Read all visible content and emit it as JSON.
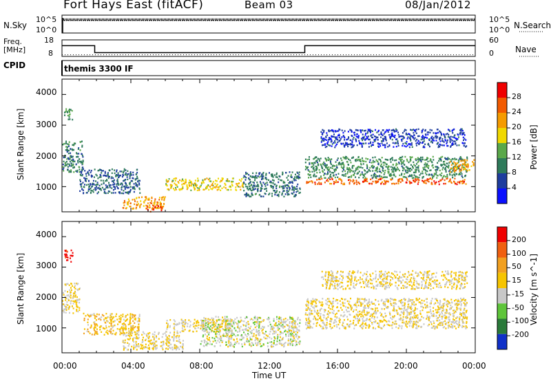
{
  "header": {
    "radar": "Fort Hays East (fitACF)",
    "beam": "Beam 03",
    "date": "08/Jan/2012"
  },
  "noise_panel": {
    "left_label": "N.Sky",
    "left_ticks": [
      "10^5",
      "10^0"
    ],
    "right_ticks": [
      "10^5",
      "10^0"
    ],
    "right_label": "N.Search"
  },
  "freq_panel": {
    "left_label_1": "Freq.",
    "left_label_2": "[MHz]",
    "left_ticks": [
      "18",
      "8"
    ],
    "right_ticks": [
      "60",
      "0"
    ],
    "right_label": "Nave"
  },
  "cpid_panel": {
    "label": "CPID",
    "text": "themis 3300 IF"
  },
  "power_panel": {
    "ylabel": "Slant Range [km]",
    "yticks": [
      "4000",
      "3000",
      "2000",
      "1000"
    ],
    "colorbar_label": "Power [dB]",
    "colorbar_ticks": [
      "28",
      "24",
      "20",
      "16",
      "12",
      "8",
      "4"
    ],
    "colors": [
      "#0a10ff",
      "#1e3d9e",
      "#2e7a5a",
      "#5aa84a",
      "#f0d800",
      "#f59b00",
      "#f25a00",
      "#f00000"
    ]
  },
  "velocity_panel": {
    "ylabel": "Slant Range [km]",
    "yticks": [
      "4000",
      "3000",
      "2000",
      "1000"
    ],
    "colorbar_label": "Velocity [m s^-1]",
    "colorbar_ticks": [
      "200",
      "100",
      "50",
      "15",
      "-15",
      "-50",
      "-100",
      "-200"
    ],
    "colors": [
      "#1030c8",
      "#2a7a3a",
      "#5ec53a",
      "#c8c8c8",
      "#f6c400",
      "#f2a020",
      "#f06010",
      "#f00000"
    ]
  },
  "x_axis": {
    "ticks": [
      "00:00",
      "04:00",
      "08:00",
      "12:00",
      "16:00",
      "20:00",
      "00:00"
    ],
    "label": "Time UT"
  },
  "chart_data": [
    {
      "type": "line",
      "title": "Fort Hays East (fitACF)",
      "series": [
        {
          "name": "N.Sky",
          "x_hours": [
            0,
            24
          ],
          "log10_values": [
            3.8,
            3.8
          ]
        }
      ],
      "ylim_log10": [
        0,
        5
      ]
    },
    {
      "type": "line",
      "series": [
        {
          "name": "Freq. [MHz]",
          "x_hours": [
            0,
            1.9,
            1.9,
            14.1,
            14.1,
            24
          ],
          "values": [
            14.5,
            14.5,
            10.3,
            10.3,
            14.5,
            14.5
          ]
        },
        {
          "name": "Nave",
          "x_hours": [
            0,
            24
          ],
          "values": [
            9,
            9
          ]
        }
      ],
      "ylim": [
        8,
        18
      ]
    },
    {
      "type": "heatmap",
      "title": "Power [dB]",
      "xlabel": "Time UT",
      "ylabel": "Slant Range [km]",
      "xlim_hours": [
        0,
        24
      ],
      "ylim_km": [
        180,
        4500
      ],
      "color_range_db": [
        0,
        32
      ],
      "regions": [
        {
          "t0": 0.0,
          "t1": 1.2,
          "r0": 1500,
          "r1": 2500,
          "power": 10
        },
        {
          "t0": 0.1,
          "t1": 0.6,
          "r0": 3200,
          "r1": 3600,
          "power": 12
        },
        {
          "t0": 1.0,
          "t1": 4.5,
          "r0": 800,
          "r1": 1600,
          "power": 8
        },
        {
          "t0": 3.5,
          "t1": 6.0,
          "r0": 300,
          "r1": 700,
          "power": 22
        },
        {
          "t0": 4.8,
          "t1": 5.8,
          "r0": 200,
          "r1": 400,
          "power": 28
        },
        {
          "t0": 6.0,
          "t1": 10.5,
          "r0": 900,
          "r1": 1300,
          "power": 18
        },
        {
          "t0": 10.5,
          "t1": 13.8,
          "r0": 700,
          "r1": 1500,
          "power": 9
        },
        {
          "t0": 14.1,
          "t1": 23.5,
          "r0": 1100,
          "r1": 1300,
          "power": 26
        },
        {
          "t0": 14.1,
          "t1": 23.5,
          "r0": 1300,
          "r1": 2000,
          "power": 11
        },
        {
          "t0": 15.0,
          "t1": 23.5,
          "r0": 2300,
          "r1": 2900,
          "power": 5
        },
        {
          "t0": 22.5,
          "t1": 23.9,
          "r0": 1500,
          "r1": 1900,
          "power": 22
        }
      ]
    },
    {
      "type": "heatmap",
      "title": "Velocity [m s^-1]",
      "xlabel": "Time UT",
      "ylabel": "Slant Range [km]",
      "xlim_hours": [
        0,
        24
      ],
      "ylim_km": [
        180,
        4500
      ],
      "color_range_ms": [
        -250,
        250
      ],
      "regions": [
        {
          "t0": 0.1,
          "t1": 0.6,
          "r0": 3200,
          "r1": 3600,
          "velocity": 220
        },
        {
          "t0": 0.0,
          "t1": 1.0,
          "r0": 1500,
          "r1": 2500,
          "velocity": 0
        },
        {
          "t0": 1.2,
          "t1": 4.5,
          "r0": 800,
          "r1": 1500,
          "velocity": 40
        },
        {
          "t0": 3.5,
          "t1": 7.0,
          "r0": 300,
          "r1": 900,
          "velocity": 0
        },
        {
          "t0": 6.0,
          "t1": 10.0,
          "r0": 900,
          "r1": 1300,
          "velocity": 0
        },
        {
          "t0": 8.0,
          "t1": 13.8,
          "r0": 400,
          "r1": 1400,
          "velocity": -30
        },
        {
          "t0": 14.1,
          "t1": 23.5,
          "r0": 1000,
          "r1": 2000,
          "velocity": 0
        },
        {
          "t0": 15.0,
          "t1": 23.5,
          "r0": 2300,
          "r1": 2900,
          "velocity": 0
        }
      ]
    }
  ]
}
